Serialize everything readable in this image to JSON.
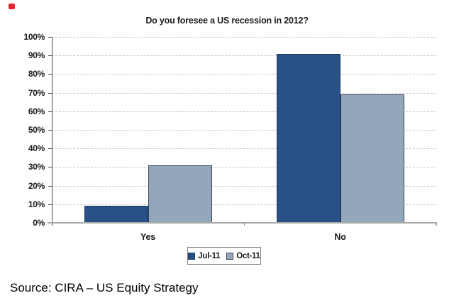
{
  "marker": {
    "color": "#e8262d"
  },
  "chart_data": {
    "type": "bar",
    "title": "Do you foresee a US recession in 2012?",
    "categories": [
      "Yes",
      "No"
    ],
    "series": [
      {
        "name": "Jul-11",
        "color": "#2a5187",
        "border_color": "#17365d",
        "values": [
          9,
          91
        ]
      },
      {
        "name": "Oct-11",
        "color": "#94a6ba",
        "border_color": "#39475f",
        "values": [
          31,
          69
        ]
      }
    ],
    "xlabel": "",
    "ylabel": "",
    "ylim": [
      0,
      100
    ],
    "y_tick_step": 10,
    "y_tick_suffix": "%",
    "grid": "dashed-horizontal",
    "legend_position": "bottom-center",
    "gridline_color": "#c6c6c6",
    "axis_color": "#4a4a4a",
    "baseline_color": "#a9a9a9"
  },
  "source": {
    "text": "Source: CIRA – US Equity Strategy"
  }
}
